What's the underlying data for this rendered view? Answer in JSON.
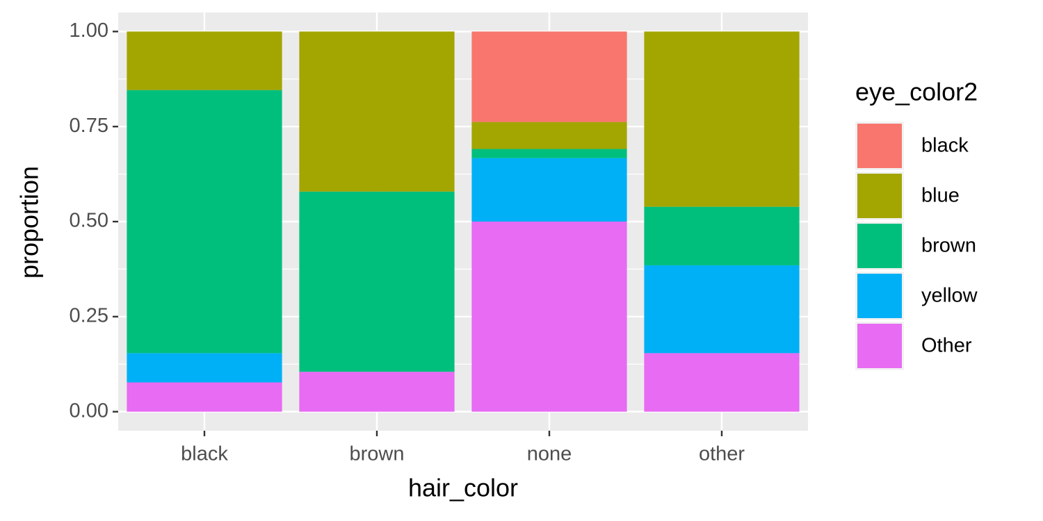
{
  "chart_data": {
    "type": "stacked_bar",
    "x_label": "hair_color",
    "y_label": "proportion",
    "legend_title": "eye_color2",
    "categories": [
      "black",
      "brown",
      "none",
      "other"
    ],
    "series": [
      {
        "name": "black",
        "color": "#f8766d",
        "values": [
          0,
          0,
          0.238,
          0
        ]
      },
      {
        "name": "blue",
        "color": "#a3a500",
        "values": [
          0.154,
          0.421,
          0.071,
          0.461
        ]
      },
      {
        "name": "brown",
        "color": "#00bf7d",
        "values": [
          0.692,
          0.474,
          0.024,
          0.154
        ]
      },
      {
        "name": "yellow",
        "color": "#00b0f6",
        "values": [
          0.077,
          0,
          0.167,
          0.231
        ]
      },
      {
        "name": "Other",
        "color": "#e76bf3",
        "values": [
          0.077,
          0.105,
          0.5,
          0.154
        ]
      }
    ],
    "ylim": [
      -0.05,
      1.05
    ],
    "yticks": [
      {
        "value": 0,
        "label": "0.00"
      },
      {
        "value": 0.25,
        "label": "0.25"
      },
      {
        "value": 0.5,
        "label": "0.50"
      },
      {
        "value": 0.75,
        "label": "0.75"
      },
      {
        "value": 1,
        "label": "1.00"
      }
    ],
    "grid": true,
    "legend_position": "right"
  }
}
